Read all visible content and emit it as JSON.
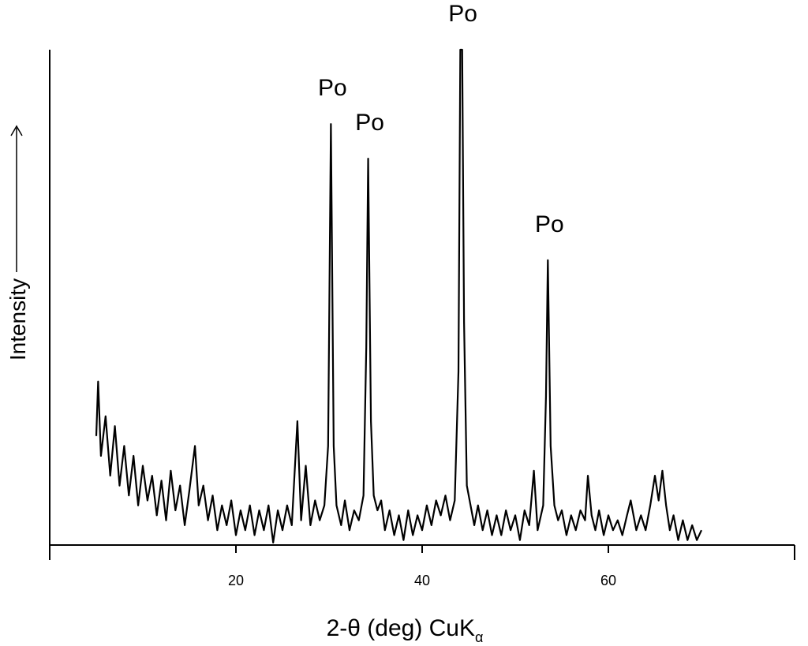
{
  "chart_data": {
    "type": "line",
    "x_label": "2-θ (deg) CuK",
    "x_label_subscript": "α",
    "y_label": "Intensity",
    "xlim": [
      0,
      80
    ],
    "xticks": [
      20,
      40,
      60
    ],
    "ylim": [
      0,
      100
    ],
    "annotations": [
      {
        "text": "Po",
        "x": 30.2
      },
      {
        "text": "Po",
        "x": 34.2
      },
      {
        "text": "Po",
        "x": 44.2
      },
      {
        "text": "Po",
        "x": 53.5
      }
    ],
    "series": [
      {
        "color": "#000000",
        "x": [
          5.0,
          5.2,
          5.5,
          6.0,
          6.5,
          7.0,
          7.5,
          8.0,
          8.5,
          9.0,
          9.5,
          10.0,
          10.5,
          11.0,
          11.5,
          12.0,
          12.5,
          13.0,
          13.5,
          14.0,
          14.5,
          15.0,
          15.6,
          16.0,
          16.5,
          17.0,
          17.5,
          18.0,
          18.5,
          19.0,
          19.5,
          20.0,
          20.5,
          21.0,
          21.5,
          22.0,
          22.5,
          23.0,
          23.5,
          24.0,
          24.5,
          25.0,
          25.5,
          26.0,
          26.6,
          27.0,
          27.5,
          28.0,
          28.5,
          29.0,
          29.5,
          29.9,
          30.2,
          30.5,
          30.8,
          31.3,
          31.7,
          32.2,
          32.7,
          33.2,
          33.7,
          34.0,
          34.2,
          34.5,
          34.8,
          35.2,
          35.6,
          36.0,
          36.5,
          37.0,
          37.5,
          38.0,
          38.5,
          39.0,
          39.5,
          40.0,
          40.5,
          41.0,
          41.5,
          42.0,
          42.5,
          43.0,
          43.5,
          43.9,
          44.1,
          44.3,
          44.5,
          44.8,
          45.2,
          45.6,
          46.0,
          46.5,
          47.0,
          47.5,
          48.0,
          48.5,
          49.0,
          49.5,
          50.0,
          50.5,
          51.0,
          51.5,
          52.0,
          52.4,
          53.0,
          53.3,
          53.5,
          53.8,
          54.2,
          54.6,
          55.0,
          55.5,
          56.0,
          56.5,
          57.0,
          57.5,
          57.8,
          58.2,
          58.6,
          59.0,
          59.5,
          60.0,
          60.5,
          61.0,
          61.5,
          62.0,
          62.4,
          63.0,
          63.5,
          64.0,
          64.5,
          65.0,
          65.4,
          65.8,
          66.2,
          66.6,
          67.0,
          67.5,
          68.0,
          68.5,
          69.0,
          69.5,
          70.0
        ],
        "values": [
          22,
          33,
          18,
          26,
          14,
          24,
          12,
          20,
          10,
          18,
          8,
          16,
          9,
          14,
          6,
          13,
          5,
          15,
          7,
          12,
          4,
          11,
          20,
          8,
          12,
          5,
          10,
          3,
          8,
          4,
          9,
          2,
          7,
          3,
          8,
          2,
          7,
          3,
          8,
          0.5,
          7,
          3,
          8,
          4,
          25,
          5,
          16,
          4,
          9,
          5,
          8,
          20,
          85,
          20,
          8,
          4,
          9,
          3,
          7,
          5,
          10,
          40,
          78,
          25,
          10,
          7,
          9,
          3,
          7,
          2,
          6,
          1,
          7,
          2,
          6,
          3,
          8,
          4,
          9,
          6,
          10,
          5,
          9,
          35,
          100,
          100,
          45,
          12,
          8,
          4,
          8,
          3,
          7,
          2,
          6,
          2,
          7,
          3,
          6,
          1,
          7,
          4,
          15,
          3,
          8,
          30,
          57.5,
          20,
          8,
          5,
          7,
          2,
          6,
          3,
          7,
          5,
          14,
          6,
          3,
          7,
          2,
          6,
          3,
          5,
          2,
          6,
          9,
          3,
          6,
          3,
          8,
          14,
          9,
          15,
          8,
          3,
          6,
          1,
          5,
          1,
          4,
          1,
          3
        ]
      }
    ]
  }
}
